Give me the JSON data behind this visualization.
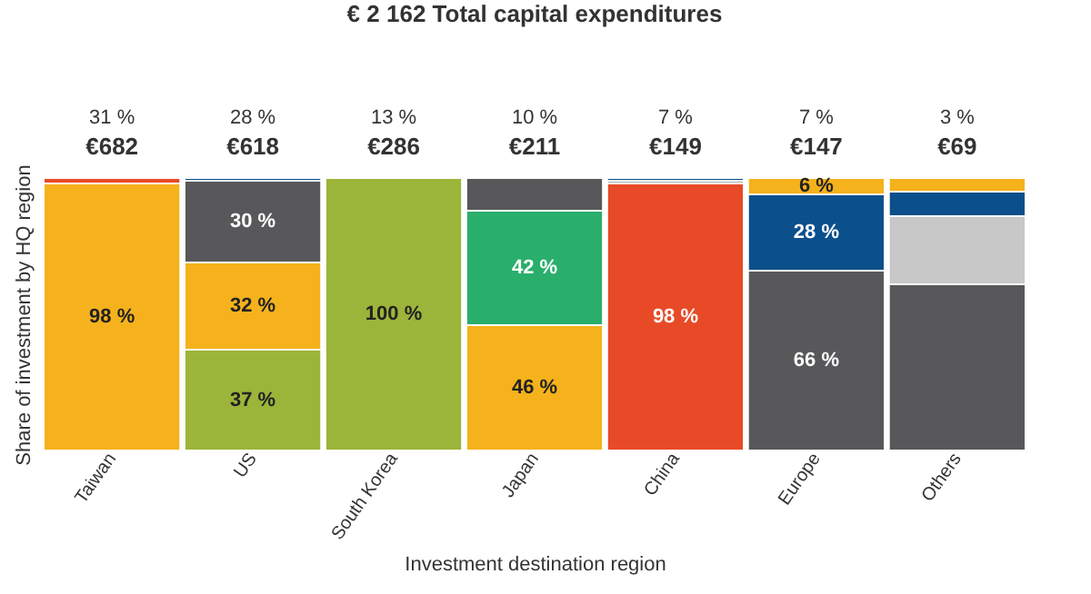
{
  "chart_data": {
    "type": "bar",
    "title": "€ 2 162 Total capital expenditures",
    "xlabel": "Investment destination region",
    "ylabel": "Share of investment by HQ region",
    "categories": [
      "Taiwan",
      "US",
      "South Korea",
      "Japan",
      "China",
      "Europe",
      "Others"
    ],
    "stacked": true,
    "ylim": [
      0,
      100
    ],
    "tick_labels": "x",
    "series": [
      {
        "values": [
          98,
          37,
          100,
          46,
          98,
          66,
          61
        ],
        "colors": [
          "#f5b21c",
          "#9bb53a",
          "#9bb53a",
          "#f5b21c",
          "#e84a27",
          "#58585a",
          "#58585a"
        ],
        "value_labels": [
          "98 %",
          "37 %",
          "100 %",
          "46 %",
          "98 %",
          "66 %",
          null
        ]
      },
      {
        "values": [
          2,
          32,
          null,
          42,
          1,
          28,
          25
        ],
        "colors": [
          "#e84a27",
          "#f5b21c",
          null,
          "#2aae6c",
          "#b4b4b4",
          "#0b4f8c",
          "#c8c8c8"
        ],
        "value_labels": [
          null,
          "32 %",
          null,
          "42 %",
          null,
          "28 %",
          null
        ]
      },
      {
        "values": [
          null,
          30,
          null,
          12,
          1,
          6,
          9
        ],
        "colors": [
          null,
          "#58585a",
          null,
          "#58585a",
          "#0b4f8c",
          "#f5b21c",
          "#0b4f8c"
        ],
        "value_labels": [
          null,
          "30 %",
          null,
          null,
          null,
          "6 %",
          null
        ]
      },
      {
        "values": [
          null,
          1,
          null,
          null,
          null,
          null,
          5
        ],
        "colors": [
          null,
          "#0b4f8c",
          null,
          null,
          null,
          null,
          "#f5b21c"
        ]
      }
    ],
    "annotations": [
      "31 %",
      "€682",
      "28 %",
      "€618",
      "13 %",
      "€286",
      "10 %",
      "€211",
      "7 %",
      "€149",
      "7 %",
      "€147",
      "3 %",
      "€69"
    ]
  }
}
